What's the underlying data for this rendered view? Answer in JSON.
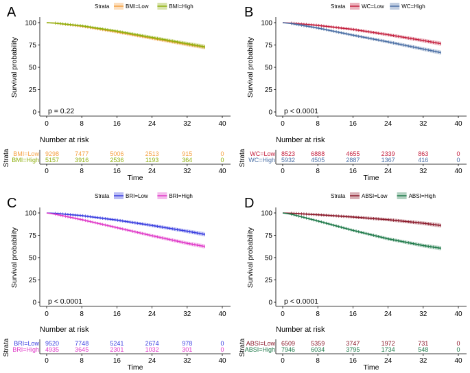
{
  "chart_data": [
    {
      "type": "line",
      "panel": "A",
      "legend_title": "Strata",
      "ylabel": "Survival probability",
      "xlabel": "Time",
      "ylim": [
        0,
        100
      ],
      "xlim": [
        0,
        40
      ],
      "yticks": [
        0,
        25,
        50,
        75,
        100
      ],
      "xticks": [
        0,
        8,
        16,
        24,
        32,
        40
      ],
      "pvalue": "p = 0.22",
      "risk_title": "Number at risk",
      "risk_strata_label": "Strata",
      "risk_times": [
        0,
        8,
        16,
        24,
        32,
        40
      ],
      "series": [
        {
          "name": "BMI=Low",
          "color": "#f5a142",
          "x": [
            0,
            2,
            8,
            16,
            24,
            32,
            36
          ],
          "y": [
            100,
            99.5,
            96.0,
            89.5,
            82.5,
            75.5,
            72.5
          ],
          "risk": [
            9298,
            7477,
            5006,
            2513,
            915,
            0
          ]
        },
        {
          "name": "BMI=High",
          "color": "#8fb00f",
          "x": [
            0,
            2,
            8,
            16,
            24,
            32,
            36
          ],
          "y": [
            100,
            99.5,
            96.5,
            90.5,
            83.5,
            76.5,
            73.0
          ],
          "risk": [
            5157,
            3916,
            2536,
            1193,
            364,
            0
          ]
        }
      ]
    },
    {
      "type": "line",
      "panel": "B",
      "legend_title": "Strata",
      "ylabel": "Survival probability",
      "xlabel": "Time",
      "ylim": [
        0,
        100
      ],
      "xlim": [
        0,
        40
      ],
      "yticks": [
        0,
        25,
        50,
        75,
        100
      ],
      "xticks": [
        0,
        8,
        16,
        24,
        32,
        40
      ],
      "pvalue": "p < 0.0001",
      "risk_title": "Number at risk",
      "risk_strata_label": "Strata",
      "risk_times": [
        0,
        8,
        16,
        24,
        32,
        40
      ],
      "series": [
        {
          "name": "WC=Low",
          "color": "#c4213f",
          "x": [
            0,
            2,
            8,
            16,
            24,
            32,
            36
          ],
          "y": [
            100,
            99.5,
            97.0,
            92.5,
            86.5,
            80.0,
            76.5
          ],
          "risk": [
            8523,
            6888,
            4655,
            2339,
            863,
            0
          ]
        },
        {
          "name": "WC=High",
          "color": "#4a6fa5",
          "x": [
            0,
            2,
            8,
            16,
            24,
            32,
            36
          ],
          "y": [
            100,
            99.0,
            94.0,
            86.0,
            78.5,
            70.5,
            66.5
          ],
          "risk": [
            5932,
            4505,
            2887,
            1367,
            416,
            0
          ]
        }
      ]
    },
    {
      "type": "line",
      "panel": "C",
      "legend_title": "Strata",
      "ylabel": "Survival probability",
      "xlabel": "Time",
      "ylim": [
        0,
        100
      ],
      "xlim": [
        0,
        40
      ],
      "yticks": [
        0,
        25,
        50,
        75,
        100
      ],
      "xticks": [
        0,
        8,
        16,
        24,
        32,
        40
      ],
      "pvalue": "p < 0.0001",
      "risk_title": "Number at risk",
      "risk_strata_label": "Strata",
      "risk_times": [
        0,
        8,
        16,
        24,
        32,
        40
      ],
      "series": [
        {
          "name": "BRI=Low",
          "color": "#3a3fe0",
          "x": [
            0,
            2,
            8,
            16,
            24,
            32,
            36
          ],
          "y": [
            100,
            99.5,
            97.0,
            92.0,
            86.0,
            79.5,
            76.0
          ],
          "risk": [
            9520,
            7748,
            5241,
            2674,
            978,
            0
          ]
        },
        {
          "name": "BRI=High",
          "color": "#e03ac8",
          "x": [
            0,
            2,
            8,
            16,
            24,
            32,
            36
          ],
          "y": [
            100,
            98.5,
            92.5,
            83.5,
            74.5,
            66.0,
            62.5
          ],
          "risk": [
            4935,
            3645,
            2301,
            1032,
            301,
            0
          ]
        }
      ]
    },
    {
      "type": "line",
      "panel": "D",
      "legend_title": "Strata",
      "ylabel": "Survival probability",
      "xlabel": "Time",
      "ylim": [
        0,
        100
      ],
      "xlim": [
        0,
        40
      ],
      "yticks": [
        0,
        25,
        50,
        75,
        100
      ],
      "xticks": [
        0,
        8,
        16,
        24,
        32,
        40
      ],
      "pvalue": "p < 0.0001",
      "risk_title": "Number at risk",
      "risk_strata_label": "Strata",
      "risk_times": [
        0,
        8,
        16,
        24,
        32,
        40
      ],
      "series": [
        {
          "name": "ABSI=Low",
          "color": "#8b1a2b",
          "x": [
            0,
            2,
            8,
            16,
            24,
            32,
            36
          ],
          "y": [
            100,
            99.7,
            98.0,
            95.5,
            92.5,
            88.5,
            86.0
          ],
          "risk": [
            6509,
            5359,
            3747,
            1972,
            731,
            0
          ]
        },
        {
          "name": "ABSI=High",
          "color": "#1f7a4a",
          "x": [
            0,
            2,
            8,
            16,
            24,
            32,
            36
          ],
          "y": [
            100,
            98.5,
            91.0,
            80.5,
            71.0,
            63.5,
            60.5
          ],
          "risk": [
            7946,
            6034,
            3795,
            1734,
            548,
            0
          ]
        }
      ]
    }
  ]
}
